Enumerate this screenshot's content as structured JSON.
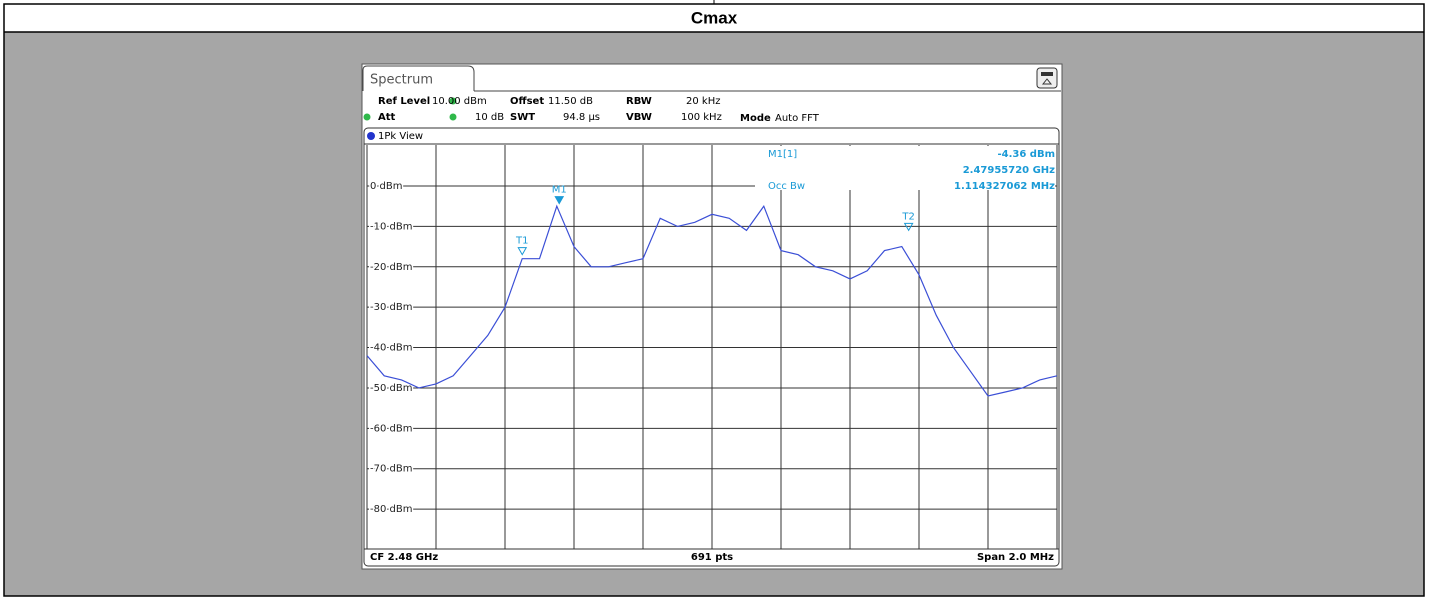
{
  "heading": "Cmax",
  "chart_data": {
    "type": "line",
    "tab": "Spectrum",
    "settings": [
      {
        "name": "Ref Level",
        "value": "10.00 dBm"
      },
      {
        "name": "Offset",
        "value": "11.50 dB"
      },
      {
        "name": "RBW",
        "value": "20 kHz"
      },
      {
        "name": "Att",
        "value": "10 dB"
      },
      {
        "name": "SWT",
        "value": "94.8 µs"
      },
      {
        "name": "VBW",
        "value": "100 kHz"
      },
      {
        "name": "Mode",
        "value": "Auto FFT"
      }
    ],
    "view": "1Pk View",
    "readout": {
      "marker": "M1[1]",
      "level": "-4.36 dBm",
      "frequency": "2.47955720 GHz",
      "occ_label": "Occ Bw",
      "occ_value": "1.114327062 MHz"
    },
    "footer": {
      "center_freq": "CF 2.48 GHz",
      "points": "691 pts",
      "span": "Span 2.0 MHz"
    },
    "xlim": [
      2.479,
      2.481
    ],
    "ylim": [
      -90,
      10
    ],
    "yticks": [
      {
        "value": 0,
        "label": "0 dBm"
      },
      {
        "value": -10,
        "label": "-10 dBm"
      },
      {
        "value": -20,
        "label": "-20 dBm"
      },
      {
        "value": -30,
        "label": "-30 dBm"
      },
      {
        "value": -40,
        "label": "-40 dBm"
      },
      {
        "value": -50,
        "label": "-50 dBm"
      },
      {
        "value": -60,
        "label": "-60 dBm"
      },
      {
        "value": -70,
        "label": "-70 dBm"
      },
      {
        "value": -80,
        "label": "-80 dBm"
      }
    ],
    "grid": true,
    "series": [
      {
        "color": "#3b4fd6",
        "x": [
          2.479,
          2.47905,
          2.4791,
          2.47915,
          2.4792,
          2.47925,
          2.4793,
          2.47935,
          2.4794,
          2.47945,
          2.4795,
          2.47955,
          2.4796,
          2.47965,
          2.4797,
          2.47975,
          2.4798,
          2.47985,
          2.4799,
          2.47995,
          2.48,
          2.48005,
          2.4801,
          2.48015,
          2.4802,
          2.48025,
          2.4803,
          2.48035,
          2.4804,
          2.48045,
          2.4805,
          2.48055,
          2.4806,
          2.48065,
          2.4807,
          2.48075,
          2.4808,
          2.48085,
          2.4809,
          2.48095,
          2.481
        ],
        "values": [
          -42,
          -47,
          -48,
          -50,
          -49,
          -47,
          -42,
          -37,
          -30,
          -18,
          -18,
          -5,
          -15,
          -20,
          -20,
          -19,
          -18,
          -8,
          -10,
          -9,
          -7,
          -8,
          -11,
          -5,
          -16,
          -17,
          -20,
          -21,
          -23,
          -21,
          -16,
          -15,
          -22,
          -32,
          -40,
          -46,
          -52,
          -51,
          -50,
          -48,
          -47
        ]
      }
    ],
    "markers": [
      {
        "name": "M1",
        "x": 2.4795572,
        "y": -4.36
      },
      {
        "name": "T1",
        "x": 2.47945,
        "y": -17
      },
      {
        "name": "T2",
        "x": 2.48057,
        "y": -11
      }
    ]
  }
}
